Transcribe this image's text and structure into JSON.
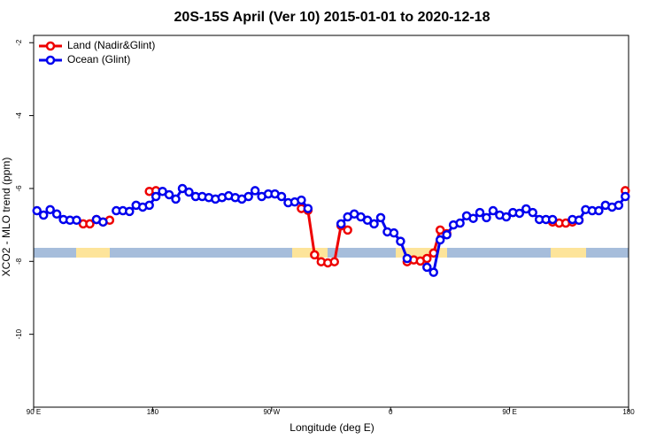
{
  "chart_data": {
    "type": "line",
    "title": "20S-15S April (Ver 10)   2015-01-01 to 2020-12-18",
    "x_label": "Longitude (deg E)",
    "y_label": "XCO2 - MLO trend (ppm)",
    "xlim": [
      90,
      540
    ],
    "xticks": [
      {
        "value": 90,
        "label": "90 E"
      },
      {
        "value": 180,
        "label": "180"
      },
      {
        "value": 270,
        "label": "90 W"
      },
      {
        "value": 360,
        "label": "0"
      },
      {
        "value": 450,
        "label": "90 E"
      },
      {
        "value": 540,
        "label": "180"
      }
    ],
    "ylim": [
      -12,
      -1.8
    ],
    "yticks": [
      -2,
      -4,
      -6,
      -8,
      -10
    ],
    "legend": "upper left",
    "x": [
      92.5,
      97.5,
      102.5,
      107.5,
      112.5,
      117.5,
      122.5,
      127.5,
      132.5,
      137.5,
      142.5,
      147.5,
      152.5,
      157.5,
      162.5,
      167.5,
      172.5,
      177.5,
      182.5,
      187.5,
      192.5,
      197.5,
      202.5,
      207.5,
      212.5,
      217.5,
      222.5,
      227.5,
      232.5,
      237.5,
      242.5,
      247.5,
      252.5,
      257.5,
      262.5,
      267.5,
      272.5,
      277.5,
      282.5,
      287.5,
      292.5,
      297.5,
      302.5,
      307.5,
      312.5,
      317.5,
      322.5,
      327.5,
      332.5,
      337.5,
      342.5,
      347.5,
      352.5,
      357.5,
      362.5,
      367.5,
      372.5,
      377.5,
      382.5,
      387.5,
      392.5,
      397.5,
      402.5,
      407.5,
      412.5,
      417.5,
      422.5,
      427.5,
      432.5,
      437.5,
      442.5,
      447.5,
      452.5,
      457.5,
      462.5,
      467.5,
      472.5,
      477.5,
      482.5,
      487.5,
      492.5,
      497.5,
      502.5,
      507.5,
      512.5,
      517.5,
      522.5,
      527.5,
      532.5,
      537.5
    ],
    "series": [
      {
        "name": "Land (Nadir&Glint)",
        "color": "#ee0000",
        "values": [
          null,
          null,
          null,
          null,
          null,
          null,
          null,
          -6.97,
          -6.97,
          -6.85,
          -6.92,
          -6.87,
          null,
          null,
          null,
          null,
          null,
          -6.08,
          -6.06,
          null,
          null,
          null,
          null,
          null,
          null,
          null,
          null,
          null,
          null,
          null,
          null,
          null,
          null,
          null,
          null,
          null,
          null,
          null,
          null,
          null,
          -6.55,
          -6.6,
          -7.82,
          -8.01,
          -8.04,
          -8.01,
          -7.02,
          -7.14,
          null,
          null,
          null,
          null,
          null,
          null,
          null,
          null,
          -8.01,
          -7.96,
          -7.99,
          -7.92,
          -7.77,
          -7.14,
          -7.24,
          null,
          null,
          null,
          null,
          null,
          null,
          null,
          null,
          null,
          null,
          null,
          null,
          null,
          null,
          null,
          -6.92,
          -6.95,
          -6.95,
          -6.92,
          -6.87,
          null,
          null,
          null,
          null,
          null,
          null,
          -6.06
        ]
      },
      {
        "name": "Ocean (Glint)",
        "color": "#0000ee",
        "values": [
          -6.61,
          -6.73,
          -6.58,
          -6.7,
          -6.85,
          -6.87,
          -6.87,
          null,
          null,
          -6.85,
          -6.92,
          null,
          -6.61,
          -6.61,
          -6.63,
          -6.46,
          -6.51,
          -6.46,
          -6.22,
          -6.08,
          -6.17,
          -6.29,
          -6.0,
          -6.1,
          -6.22,
          -6.22,
          -6.25,
          -6.29,
          -6.25,
          -6.2,
          -6.25,
          -6.29,
          -6.22,
          -6.06,
          -6.22,
          -6.15,
          -6.15,
          -6.22,
          -6.39,
          -6.37,
          -6.32,
          -6.55,
          null,
          null,
          null,
          null,
          -6.97,
          -6.78,
          -6.7,
          -6.78,
          -6.87,
          -6.97,
          -6.8,
          -7.19,
          -7.22,
          -7.45,
          -7.92,
          null,
          null,
          -8.16,
          -8.3,
          -7.41,
          -7.27,
          -7.0,
          -6.95,
          -6.75,
          -6.82,
          -6.66,
          -6.8,
          -6.61,
          -6.73,
          -6.78,
          -6.66,
          -6.68,
          -6.56,
          -6.66,
          -6.85,
          -6.85,
          -6.85,
          null,
          null,
          -6.85,
          -6.87,
          -6.58,
          -6.61,
          -6.61,
          -6.46,
          -6.51,
          -6.46,
          -6.22
        ]
      }
    ]
  }
}
